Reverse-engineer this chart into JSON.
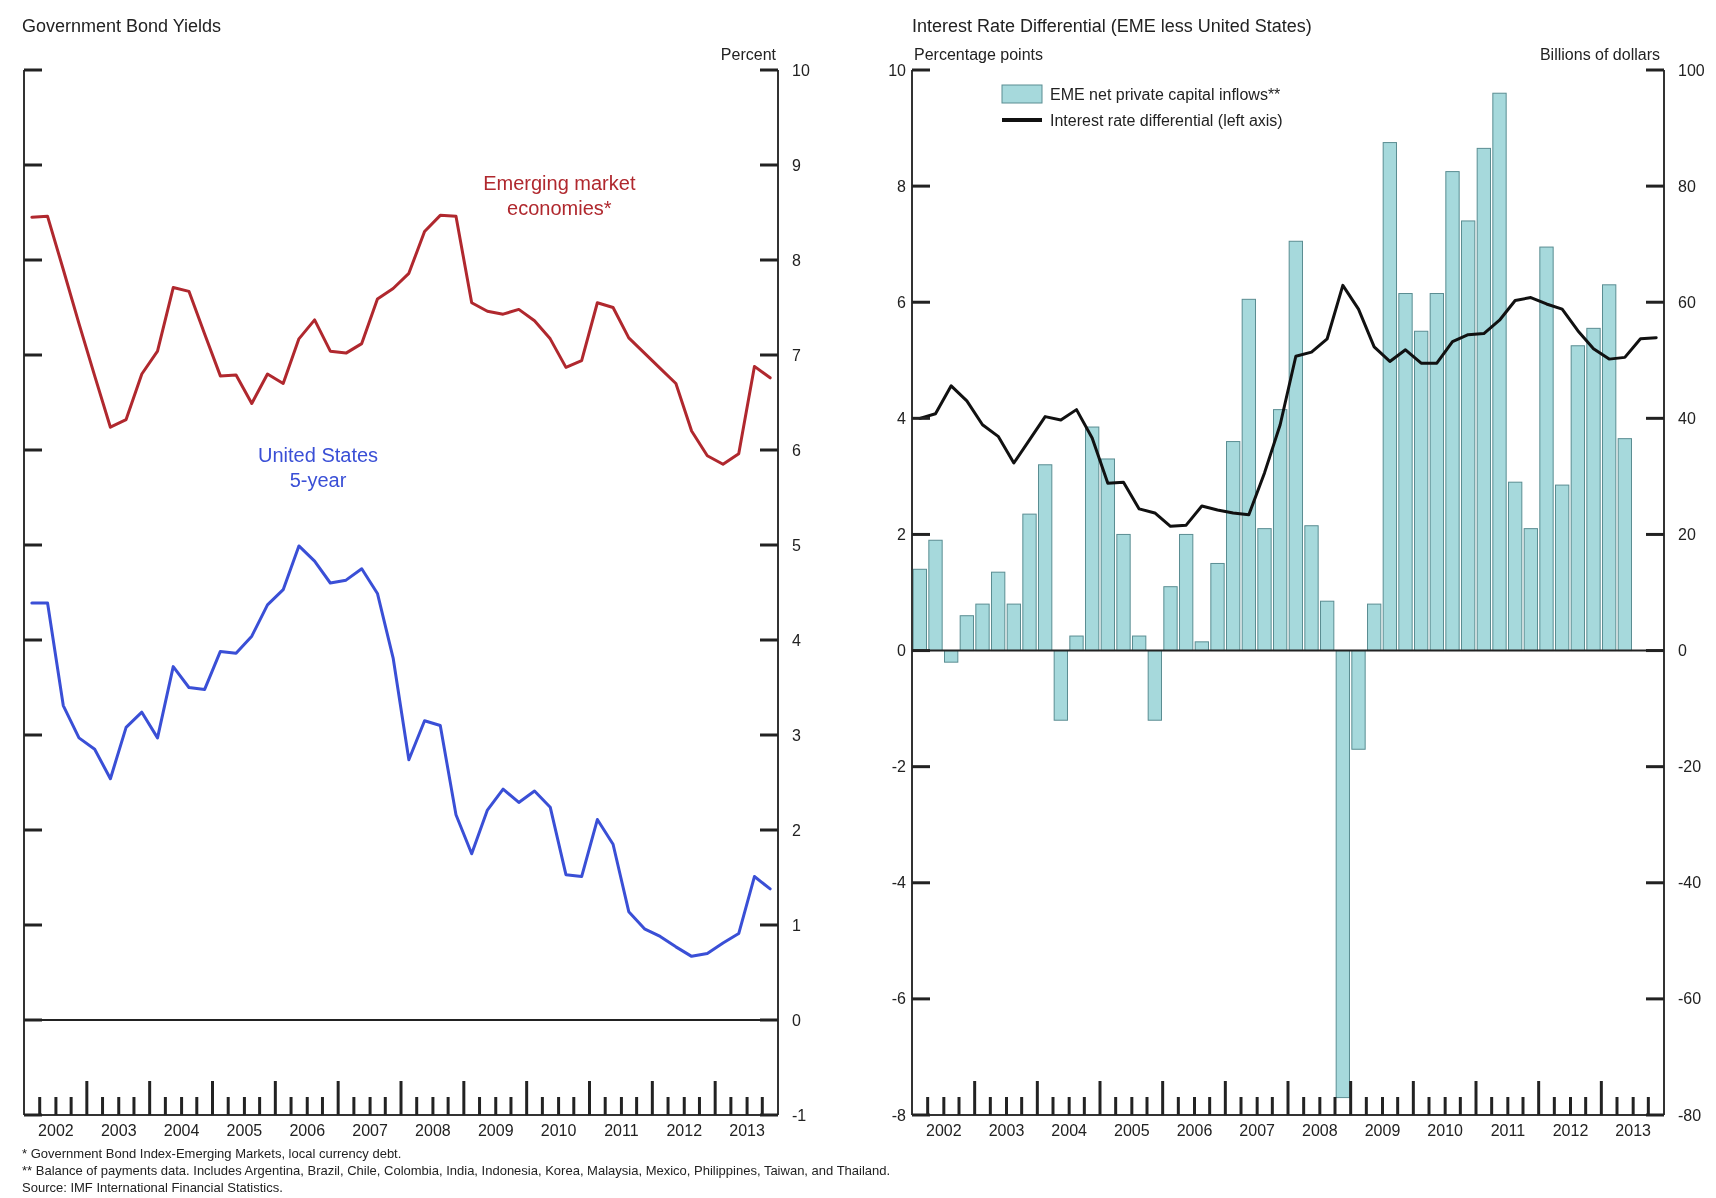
{
  "chart_data": [
    {
      "type": "line",
      "title": "Government Bond Yields",
      "ylabel": "Percent",
      "legend": false,
      "x": [
        2002.125,
        2002.375,
        2002.625,
        2002.875,
        2003.125,
        2003.375,
        2003.625,
        2003.875,
        2004.125,
        2004.375,
        2004.625,
        2004.875,
        2005.125,
        2005.375,
        2005.625,
        2005.875,
        2006.125,
        2006.375,
        2006.625,
        2006.875,
        2007.125,
        2007.375,
        2007.625,
        2007.875,
        2008.125,
        2008.375,
        2008.625,
        2008.875,
        2009.125,
        2009.375,
        2009.625,
        2009.875,
        2010.125,
        2010.375,
        2010.625,
        2010.875,
        2011.125,
        2011.375,
        2011.625,
        2011.875,
        2012.125,
        2012.375,
        2012.625,
        2012.875,
        2013.125,
        2013.375,
        2013.625,
        2013.875
      ],
      "series": [
        {
          "name": "Emerging market economies*",
          "color": "#b0282e",
          "values": [
            8.45,
            8.46,
            7.9,
            7.33,
            6.78,
            6.24,
            6.32,
            6.8,
            7.04,
            7.71,
            7.67,
            7.22,
            6.78,
            6.79,
            6.49,
            6.8,
            6.7,
            7.17,
            7.37,
            7.04,
            7.02,
            7.12,
            7.59,
            7.7,
            7.86,
            8.3,
            8.47,
            8.46,
            7.55,
            7.46,
            7.43,
            7.48,
            7.36,
            7.17,
            6.87,
            6.94,
            7.55,
            7.5,
            7.18,
            7.02,
            6.86,
            6.7,
            6.2,
            5.94,
            5.85,
            5.96,
            6.88,
            6.76
          ]
        },
        {
          "name": "United States 5-year",
          "color": "#3a4fd6",
          "values": [
            4.39,
            4.39,
            3.31,
            2.97,
            2.85,
            2.54,
            3.08,
            3.24,
            2.97,
            3.72,
            3.5,
            3.48,
            3.88,
            3.86,
            4.04,
            4.37,
            4.53,
            4.99,
            4.83,
            4.6,
            4.63,
            4.75,
            4.49,
            3.81,
            2.74,
            3.15,
            3.1,
            2.16,
            1.75,
            2.21,
            2.43,
            2.29,
            2.41,
            2.24,
            1.53,
            1.51,
            2.11,
            1.85,
            1.14,
            0.96,
            0.88,
            0.77,
            0.67,
            0.7,
            0.81,
            0.91,
            1.51,
            1.38
          ]
        }
      ],
      "xlim": [
        2002,
        2014
      ],
      "xticks": [
        {
          "value": 2002.5,
          "label": "2002"
        },
        {
          "value": 2003.5,
          "label": "2003"
        },
        {
          "value": 2004.5,
          "label": "2004"
        },
        {
          "value": 2005.5,
          "label": "2005"
        },
        {
          "value": 2006.5,
          "label": "2006"
        },
        {
          "value": 2007.5,
          "label": "2007"
        },
        {
          "value": 2008.5,
          "label": "2008"
        },
        {
          "value": 2009.5,
          "label": "2009"
        },
        {
          "value": 2010.5,
          "label": "2010"
        },
        {
          "value": 2011.5,
          "label": "2011"
        },
        {
          "value": 2012.5,
          "label": "2012"
        },
        {
          "value": 2013.5,
          "label": "2013"
        }
      ],
      "ylim": [
        -1,
        10
      ],
      "yticks": [
        -1,
        0,
        1,
        2,
        3,
        4,
        5,
        6,
        7,
        8,
        9,
        10
      ],
      "ref_lines": [
        {
          "axis": "y",
          "value": 0
        }
      ],
      "annotations": [
        "* Government Bond Index-Emerging Markets, local currency debt.",
        "** Balance of payments data. Includes Argentina, Brazil, Chile, Colombia, India, Indonesia, Korea, Malaysia, Mexico, Philippines, Taiwan, and Thailand.",
        "Source: IMF International Financial Statistics."
      ]
    },
    {
      "type": "bar",
      "title": "Interest Rate Differential (EME less United States)",
      "ylabel": "Percentage points",
      "y2label": "Billions of dollars",
      "legend": "top left",
      "x": [
        2002.125,
        2002.375,
        2002.625,
        2002.875,
        2003.125,
        2003.375,
        2003.625,
        2003.875,
        2004.125,
        2004.375,
        2004.625,
        2004.875,
        2005.125,
        2005.375,
        2005.625,
        2005.875,
        2006.125,
        2006.375,
        2006.625,
        2006.875,
        2007.125,
        2007.375,
        2007.625,
        2007.875,
        2008.125,
        2008.375,
        2008.625,
        2008.875,
        2009.125,
        2009.375,
        2009.625,
        2009.875,
        2010.125,
        2010.375,
        2010.625,
        2010.875,
        2011.125,
        2011.375,
        2011.625,
        2011.875,
        2012.125,
        2012.375,
        2012.625,
        2012.875,
        2013.125,
        2013.375,
        2013.625,
        2013.875
      ],
      "series": [
        {
          "name": "EME net private capital inflows**",
          "type": "bar",
          "axis": "y2",
          "color": "#a6d9dc",
          "x": [
            2002.125,
            2002.375,
            2002.625,
            2002.875,
            2003.125,
            2003.375,
            2003.625,
            2003.875,
            2004.125,
            2004.375,
            2004.625,
            2004.875,
            2005.125,
            2005.375,
            2005.625,
            2005.875,
            2006.125,
            2006.375,
            2006.625,
            2006.875,
            2007.125,
            2007.375,
            2007.625,
            2007.875,
            2008.125,
            2008.375,
            2008.625,
            2008.875,
            2009.125,
            2009.375,
            2009.625,
            2009.875,
            2010.125,
            2010.375,
            2010.625,
            2010.875,
            2011.125,
            2011.375,
            2011.625,
            2011.875,
            2012.125,
            2012.375,
            2012.625,
            2012.875,
            2013.125,
            2013.375
          ],
          "values": [
            14,
            19,
            -2,
            6,
            8,
            13.5,
            8,
            23.5,
            32,
            -12,
            2.5,
            38.5,
            33,
            20,
            2.5,
            -12,
            11,
            20,
            1.5,
            15,
            36,
            60.5,
            21,
            41.5,
            70.5,
            21.5,
            8.5,
            -77,
            -17,
            8,
            87.5,
            61.5,
            55,
            61.5,
            82.5,
            74,
            86.5,
            96,
            29,
            21,
            69.5,
            28.5,
            52.5,
            55.5,
            63,
            36.5
          ]
        },
        {
          "name": "Interest rate differential (left axis)",
          "type": "line",
          "axis": "y",
          "color": "#111111",
          "values": [
            4.0,
            4.08,
            4.56,
            4.3,
            3.89,
            3.69,
            3.23,
            3.63,
            4.03,
            3.97,
            4.15,
            3.66,
            2.88,
            2.9,
            2.44,
            2.37,
            2.14,
            2.16,
            2.49,
            2.42,
            2.37,
            2.34,
            3.06,
            3.89,
            5.07,
            5.14,
            5.37,
            6.29,
            5.88,
            5.23,
            4.98,
            5.18,
            4.95,
            4.95,
            5.32,
            5.44,
            5.46,
            5.69,
            6.03,
            6.08,
            5.97,
            5.88,
            5.51,
            5.2,
            5.02,
            5.05,
            5.37,
            5.39
          ]
        }
      ],
      "xlim": [
        2002,
        2014
      ],
      "xticks": [
        {
          "value": 2002.5,
          "label": "2002"
        },
        {
          "value": 2003.5,
          "label": "2003"
        },
        {
          "value": 2004.5,
          "label": "2004"
        },
        {
          "value": 2005.5,
          "label": "2005"
        },
        {
          "value": 2006.5,
          "label": "2006"
        },
        {
          "value": 2007.5,
          "label": "2007"
        },
        {
          "value": 2008.5,
          "label": "2008"
        },
        {
          "value": 2009.5,
          "label": "2009"
        },
        {
          "value": 2010.5,
          "label": "2010"
        },
        {
          "value": 2011.5,
          "label": "2011"
        },
        {
          "value": 2012.5,
          "label": "2012"
        },
        {
          "value": 2013.5,
          "label": "2013"
        }
      ],
      "ylim": [
        -8,
        10
      ],
      "yticks": [
        -8,
        -6,
        -4,
        -2,
        0,
        2,
        4,
        6,
        8,
        10
      ],
      "y2lim": [
        -80,
        100
      ],
      "y2ticks": [
        -80,
        -60,
        -40,
        -20,
        0,
        20,
        40,
        60,
        80,
        100
      ],
      "ref_lines": [
        {
          "axis": "y",
          "value": 0
        }
      ]
    }
  ]
}
